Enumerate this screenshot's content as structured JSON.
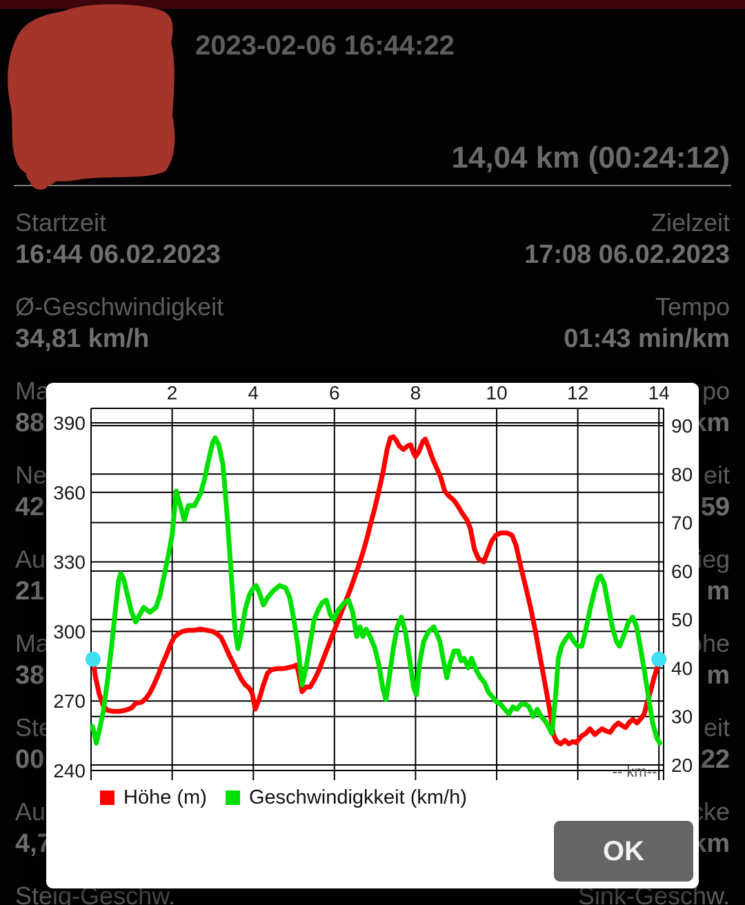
{
  "header": {
    "datetime": "2023-02-06 16:44:22",
    "distance_time": "14,04 km (00:24:12)"
  },
  "stats_rows": [
    {
      "left_label": "Startzeit",
      "left_value": "16:44 06.02.2023",
      "right_label": "Zielzeit",
      "right_value": "17:08 06.02.2023"
    },
    {
      "left_label": "Ø-Geschwindigkeit",
      "left_value": "34,81 km/h",
      "right_label": "Tempo",
      "right_value": "01:43 min/km"
    },
    {
      "left_label": "Ma",
      "left_value": "88",
      "right_label": "po",
      "right_value": "km"
    },
    {
      "left_label": "Ne",
      "left_value": "42,",
      "right_label": "eit",
      "right_value": "59"
    },
    {
      "left_label": "Au",
      "left_value": "21",
      "right_label": "ieg",
      "right_value": "m"
    },
    {
      "left_label": "Ma",
      "left_value": "38",
      "right_label": "öhe",
      "right_value": "m"
    },
    {
      "left_label": "Ste",
      "left_value": "00",
      "right_label": "eit",
      "right_value": "22"
    },
    {
      "left_label": "Au",
      "left_value": "4,7",
      "right_label": "cke",
      "right_value": "km"
    },
    {
      "left_label": "Steig-Geschw.",
      "left_value": "",
      "right_label": "Sink-Geschw.",
      "right_value": ""
    }
  ],
  "dialog": {
    "ok_label": "OK",
    "km_unit_label": "-- km--",
    "legend": [
      {
        "label": "Höhe (m)",
        "color": "#FF0000"
      },
      {
        "label": "Geschwindigkkeit (km/h)",
        "color": "#00E000"
      }
    ]
  },
  "colors": {
    "background": "#020202",
    "status_bar": "#3E060C",
    "redaction": "#A5342B",
    "elevation_line": "#FF0000",
    "speed_line": "#00E000",
    "marker": "#3FDFF2",
    "grid": "#000000"
  },
  "chart_data": {
    "type": "line",
    "x_axis": {
      "label": "km",
      "ticks": [
        2,
        4,
        6,
        8,
        10,
        12,
        14
      ],
      "range": [
        0,
        14.1
      ]
    },
    "y_left": {
      "label": "Höhe (m)",
      "ticks": [
        390,
        360,
        330,
        300,
        270,
        240
      ],
      "range": [
        240,
        390
      ]
    },
    "y_right": {
      "label": "Geschwindigkkeit (km/h)",
      "ticks": [
        90,
        80,
        70,
        60,
        50,
        40,
        30,
        20
      ],
      "range": [
        20,
        90
      ]
    },
    "legend_position": "bottom",
    "grid": true,
    "series": [
      {
        "name": "Höhe (m)",
        "axis": "left",
        "color": "#FF0000",
        "points": [
          [
            0.05,
            288
          ],
          [
            0.1,
            281
          ],
          [
            0.2,
            273
          ],
          [
            0.3,
            268
          ],
          [
            0.4,
            266
          ],
          [
            0.55,
            265.5
          ],
          [
            0.7,
            265.5
          ],
          [
            0.85,
            266
          ],
          [
            1.0,
            267
          ],
          [
            1.1,
            269
          ],
          [
            1.25,
            269.5
          ],
          [
            1.35,
            271
          ],
          [
            1.45,
            273.5
          ],
          [
            1.55,
            277
          ],
          [
            1.65,
            281
          ],
          [
            1.75,
            285.5
          ],
          [
            1.85,
            289.5
          ],
          [
            1.95,
            294
          ],
          [
            2.05,
            297.5
          ],
          [
            2.15,
            299
          ],
          [
            2.25,
            300
          ],
          [
            2.4,
            300.5
          ],
          [
            2.55,
            300.5
          ],
          [
            2.7,
            301
          ],
          [
            2.85,
            300.5
          ],
          [
            3.0,
            300
          ],
          [
            3.1,
            299
          ],
          [
            3.2,
            297.5
          ],
          [
            3.3,
            294
          ],
          [
            3.4,
            290
          ],
          [
            3.5,
            286.5
          ],
          [
            3.6,
            283
          ],
          [
            3.7,
            279.5
          ],
          [
            3.8,
            277
          ],
          [
            3.9,
            275.5
          ],
          [
            3.97,
            273.5
          ],
          [
            4.05,
            266.5
          ],
          [
            4.15,
            271
          ],
          [
            4.25,
            277
          ],
          [
            4.35,
            282
          ],
          [
            4.45,
            283.5
          ],
          [
            4.6,
            284
          ],
          [
            4.75,
            284
          ],
          [
            4.9,
            284.5
          ],
          [
            5.0,
            285
          ],
          [
            5.07,
            285.5
          ],
          [
            5.12,
            282
          ],
          [
            5.2,
            274
          ],
          [
            5.3,
            276
          ],
          [
            5.4,
            276
          ],
          [
            5.5,
            279
          ],
          [
            5.6,
            282.5
          ],
          [
            5.7,
            287
          ],
          [
            5.8,
            291.5
          ],
          [
            5.9,
            296
          ],
          [
            6.0,
            300.5
          ],
          [
            6.1,
            305
          ],
          [
            6.2,
            309.5
          ],
          [
            6.3,
            314
          ],
          [
            6.4,
            318.5
          ],
          [
            6.5,
            323.5
          ],
          [
            6.6,
            328.5
          ],
          [
            6.7,
            334
          ],
          [
            6.8,
            340
          ],
          [
            6.9,
            347
          ],
          [
            7.0,
            353.5
          ],
          [
            7.1,
            361
          ],
          [
            7.2,
            369
          ],
          [
            7.3,
            378.5
          ],
          [
            7.38,
            383.5
          ],
          [
            7.45,
            384
          ],
          [
            7.52,
            382.5
          ],
          [
            7.6,
            380
          ],
          [
            7.7,
            378.5
          ],
          [
            7.8,
            380
          ],
          [
            7.88,
            380.5
          ],
          [
            7.95,
            377
          ],
          [
            8.0,
            375.5
          ],
          [
            8.08,
            377.5
          ],
          [
            8.18,
            382
          ],
          [
            8.24,
            383
          ],
          [
            8.32,
            379.5
          ],
          [
            8.42,
            374.5
          ],
          [
            8.52,
            370.5
          ],
          [
            8.62,
            366.5
          ],
          [
            8.72,
            360.5
          ],
          [
            8.82,
            358.5
          ],
          [
            8.95,
            356.5
          ],
          [
            9.05,
            354
          ],
          [
            9.15,
            351
          ],
          [
            9.27,
            348
          ],
          [
            9.35,
            344.5
          ],
          [
            9.45,
            335.5
          ],
          [
            9.55,
            331.5
          ],
          [
            9.68,
            330
          ],
          [
            9.78,
            334.5
          ],
          [
            9.88,
            339
          ],
          [
            9.98,
            341.5
          ],
          [
            10.1,
            342.5
          ],
          [
            10.25,
            342.5
          ],
          [
            10.38,
            341.5
          ],
          [
            10.48,
            337
          ],
          [
            10.6,
            327.5
          ],
          [
            10.72,
            319
          ],
          [
            10.84,
            310
          ],
          [
            10.95,
            300.5
          ],
          [
            11.06,
            290
          ],
          [
            11.18,
            278.5
          ],
          [
            11.3,
            267
          ],
          [
            11.4,
            255.5
          ],
          [
            11.48,
            252.5
          ],
          [
            11.58,
            251.5
          ],
          [
            11.68,
            253
          ],
          [
            11.78,
            251.5
          ],
          [
            11.88,
            252.5
          ],
          [
            11.96,
            252
          ],
          [
            12.1,
            255
          ],
          [
            12.2,
            256
          ],
          [
            12.3,
            258
          ],
          [
            12.42,
            255.5
          ],
          [
            12.52,
            257
          ],
          [
            12.6,
            258
          ],
          [
            12.7,
            257
          ],
          [
            12.8,
            256.5
          ],
          [
            12.9,
            259
          ],
          [
            13.0,
            260.5
          ],
          [
            13.08,
            259.5
          ],
          [
            13.18,
            258.5
          ],
          [
            13.28,
            261
          ],
          [
            13.36,
            262
          ],
          [
            13.46,
            260.5
          ],
          [
            13.56,
            262.5
          ],
          [
            13.64,
            264.5
          ],
          [
            13.72,
            270
          ],
          [
            13.8,
            274.5
          ],
          [
            13.88,
            280
          ],
          [
            13.96,
            284.5
          ],
          [
            14.03,
            288
          ]
        ]
      },
      {
        "name": "Geschwindigkkeit (km/h)",
        "axis": "right",
        "color": "#00E000",
        "points": [
          [
            0.03,
            28
          ],
          [
            0.08,
            26.5
          ],
          [
            0.13,
            24.5
          ],
          [
            0.2,
            27
          ],
          [
            0.3,
            31
          ],
          [
            0.4,
            37
          ],
          [
            0.5,
            44
          ],
          [
            0.6,
            52
          ],
          [
            0.68,
            58
          ],
          [
            0.73,
            59.5
          ],
          [
            0.8,
            58.5
          ],
          [
            0.9,
            55
          ],
          [
            1.0,
            51.5
          ],
          [
            1.1,
            49.5
          ],
          [
            1.2,
            51
          ],
          [
            1.3,
            52.5
          ],
          [
            1.45,
            51.5
          ],
          [
            1.6,
            52.5
          ],
          [
            1.7,
            55
          ],
          [
            1.8,
            59
          ],
          [
            1.9,
            63
          ],
          [
            2.0,
            67.5
          ],
          [
            2.05,
            72
          ],
          [
            2.1,
            76.5
          ],
          [
            2.15,
            75
          ],
          [
            2.22,
            73
          ],
          [
            2.3,
            70.5
          ],
          [
            2.4,
            73.5
          ],
          [
            2.55,
            73.5
          ],
          [
            2.7,
            76
          ],
          [
            2.8,
            79
          ],
          [
            2.9,
            83
          ],
          [
            3.0,
            86.5
          ],
          [
            3.06,
            87.5
          ],
          [
            3.15,
            86
          ],
          [
            3.25,
            82
          ],
          [
            3.35,
            72
          ],
          [
            3.45,
            60
          ],
          [
            3.55,
            48
          ],
          [
            3.62,
            44
          ],
          [
            3.7,
            47
          ],
          [
            3.8,
            52
          ],
          [
            3.9,
            55
          ],
          [
            4.0,
            56.5
          ],
          [
            4.07,
            57
          ],
          [
            4.15,
            55.5
          ],
          [
            4.25,
            53
          ],
          [
            4.35,
            54.5
          ],
          [
            4.5,
            56
          ],
          [
            4.65,
            57
          ],
          [
            4.8,
            56.5
          ],
          [
            4.9,
            54.5
          ],
          [
            5.0,
            50
          ],
          [
            5.1,
            44.5
          ],
          [
            5.2,
            36.5
          ],
          [
            5.3,
            40
          ],
          [
            5.4,
            45
          ],
          [
            5.5,
            50
          ],
          [
            5.6,
            52
          ],
          [
            5.7,
            53.5
          ],
          [
            5.8,
            54
          ],
          [
            5.9,
            51
          ],
          [
            5.98,
            50
          ],
          [
            6.1,
            52
          ],
          [
            6.25,
            53.5
          ],
          [
            6.35,
            54
          ],
          [
            6.45,
            51.5
          ],
          [
            6.55,
            46.5
          ],
          [
            6.63,
            48.5
          ],
          [
            6.7,
            46.5
          ],
          [
            6.78,
            48
          ],
          [
            6.88,
            46.5
          ],
          [
            7.0,
            44
          ],
          [
            7.1,
            40.5
          ],
          [
            7.2,
            35.5
          ],
          [
            7.27,
            33.5
          ],
          [
            7.35,
            38
          ],
          [
            7.45,
            44
          ],
          [
            7.55,
            48.5
          ],
          [
            7.65,
            50.5
          ],
          [
            7.75,
            47.5
          ],
          [
            7.85,
            42
          ],
          [
            7.95,
            36
          ],
          [
            8.02,
            34.5
          ],
          [
            8.1,
            41
          ],
          [
            8.2,
            45.5
          ],
          [
            8.32,
            47.5
          ],
          [
            8.45,
            48.5
          ],
          [
            8.6,
            45.5
          ],
          [
            8.7,
            41
          ],
          [
            8.77,
            38
          ],
          [
            8.85,
            41
          ],
          [
            8.95,
            43.5
          ],
          [
            9.05,
            43.5
          ],
          [
            9.12,
            41.5
          ],
          [
            9.2,
            42
          ],
          [
            9.3,
            40
          ],
          [
            9.38,
            42
          ],
          [
            9.5,
            39.5
          ],
          [
            9.6,
            38
          ],
          [
            9.7,
            37
          ],
          [
            9.8,
            35
          ],
          [
            9.9,
            34
          ],
          [
            10.0,
            33
          ],
          [
            10.1,
            32.5
          ],
          [
            10.2,
            31.5
          ],
          [
            10.3,
            30.5
          ],
          [
            10.4,
            32
          ],
          [
            10.5,
            31.5
          ],
          [
            10.6,
            32.5
          ],
          [
            10.72,
            32.5
          ],
          [
            10.8,
            32
          ],
          [
            10.9,
            30
          ],
          [
            11.0,
            31.5
          ],
          [
            11.1,
            30
          ],
          [
            11.2,
            29
          ],
          [
            11.3,
            27.5
          ],
          [
            11.36,
            26.5
          ],
          [
            11.45,
            34
          ],
          [
            11.52,
            42
          ],
          [
            11.6,
            44.5
          ],
          [
            11.7,
            46
          ],
          [
            11.8,
            47
          ],
          [
            11.9,
            45.5
          ],
          [
            12.0,
            44.5
          ],
          [
            12.1,
            44.5
          ],
          [
            12.2,
            48
          ],
          [
            12.3,
            52
          ],
          [
            12.4,
            55.5
          ],
          [
            12.5,
            58.5
          ],
          [
            12.56,
            59
          ],
          [
            12.65,
            57.5
          ],
          [
            12.75,
            53
          ],
          [
            12.85,
            48.5
          ],
          [
            12.95,
            45.5
          ],
          [
            13.03,
            44.5
          ],
          [
            13.15,
            47
          ],
          [
            13.25,
            49.5
          ],
          [
            13.35,
            50.5
          ],
          [
            13.45,
            48.5
          ],
          [
            13.55,
            44
          ],
          [
            13.65,
            39
          ],
          [
            13.75,
            33.5
          ],
          [
            13.85,
            28.5
          ],
          [
            13.95,
            25.5
          ],
          [
            14.02,
            24.5
          ]
        ]
      }
    ],
    "markers": [
      {
        "name": "start-marker",
        "x": 0.05,
        "y": 288,
        "axis": "left",
        "color": "#3FDFF2"
      },
      {
        "name": "end-marker",
        "x": 14.0,
        "y": 288,
        "axis": "left",
        "color": "#3FDFF2"
      }
    ]
  }
}
